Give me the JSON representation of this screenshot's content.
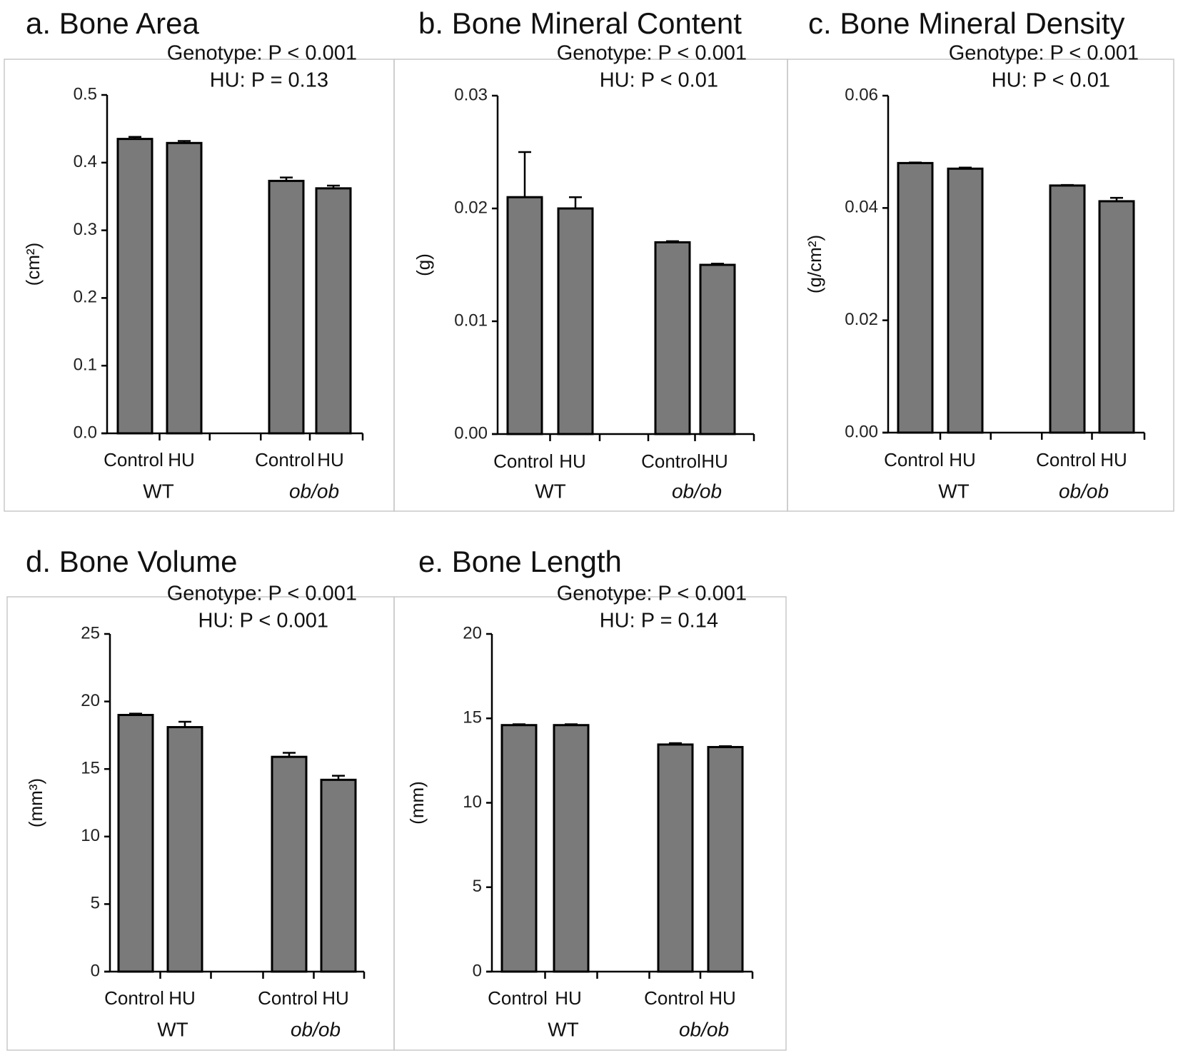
{
  "chart_data": [
    {
      "type": "bar",
      "title": "a. Bone Area",
      "stats": [
        "Genotype:  P < 0.001",
        "HU: P = 0.13"
      ],
      "ylabel": "(cm²)",
      "ylim": [
        0,
        0.5
      ],
      "yticks": [
        "0.0",
        "0.1",
        "0.2",
        "0.3",
        "0.4",
        "0.5"
      ],
      "groups": [
        "WT",
        "ob/ob"
      ],
      "categories": [
        "Control",
        "HU",
        "Control",
        "HU"
      ],
      "values": [
        0.435,
        0.429,
        0.373,
        0.362
      ],
      "errors": [
        0.003,
        0.003,
        0.005,
        0.004
      ]
    },
    {
      "type": "bar",
      "title": "b. Bone Mineral Content",
      "stats": [
        "Genotype:  P < 0.001",
        "HU:  P < 0.01"
      ],
      "ylabel": "(g)",
      "ylim": [
        0,
        0.03
      ],
      "yticks": [
        "0.00",
        "0.01",
        "0.02",
        "0.03"
      ],
      "groups": [
        "WT",
        "ob/ob"
      ],
      "categories": [
        "Control",
        "HU",
        "Control",
        "HU"
      ],
      "values": [
        0.021,
        0.02,
        0.017,
        0.015
      ],
      "errors": [
        0.004,
        0.001,
        0.0001,
        0.0001
      ]
    },
    {
      "type": "bar",
      "title": "c. Bone Mineral Density",
      "stats": [
        "Genotype:  P < 0.001",
        "HU:  P < 0.01"
      ],
      "ylabel": "(g/cm²)",
      "ylim": [
        0,
        0.06
      ],
      "yticks": [
        "0.00",
        "0.02",
        "0.04",
        "0.06"
      ],
      "groups": [
        "WT",
        "ob/ob"
      ],
      "categories": [
        "Control",
        "HU",
        "Control",
        "HU"
      ],
      "values": [
        0.048,
        0.047,
        0.044,
        0.0412
      ],
      "errors": [
        0.0001,
        0.0002,
        0.0001,
        0.0006
      ]
    },
    {
      "type": "bar",
      "title": "d. Bone Volume",
      "stats": [
        "Genotype:  P < 0.001",
        "HU:  P < 0.001"
      ],
      "ylabel": "(mm³)",
      "ylim": [
        0,
        25
      ],
      "yticks": [
        "0",
        "5",
        "10",
        "15",
        "20",
        "25"
      ],
      "groups": [
        "WT",
        "ob/ob"
      ],
      "categories": [
        "Control",
        "HU",
        "Control",
        "HU"
      ],
      "values": [
        19.0,
        18.1,
        15.9,
        14.2
      ],
      "errors": [
        0.1,
        0.4,
        0.3,
        0.3
      ]
    },
    {
      "type": "bar",
      "title": "e. Bone Length",
      "stats": [
        "Genotype:  P < 0.001",
        "HU:  P = 0.14"
      ],
      "ylabel": "(mm)",
      "ylim": [
        0,
        20
      ],
      "yticks": [
        "0",
        "5",
        "10",
        "15",
        "20"
      ],
      "groups": [
        "WT",
        "ob/ob"
      ],
      "categories": [
        "Control",
        "HU",
        "Control",
        "HU"
      ],
      "values": [
        14.6,
        14.6,
        13.45,
        13.3
      ],
      "errors": [
        0.05,
        0.05,
        0.08,
        0.05
      ]
    }
  ]
}
